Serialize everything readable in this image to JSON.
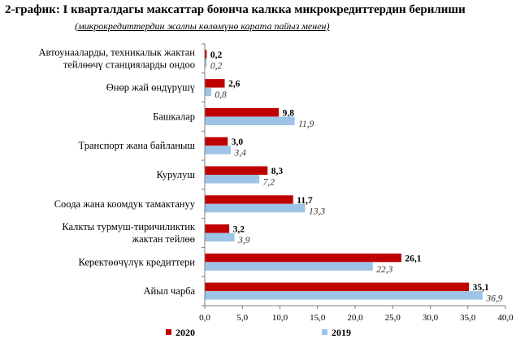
{
  "title": "2-график: I кварталдагы максаттар боюнча калкка микрокредиттердин берилиши",
  "subtitle": "(микрокредиттердин жалпы көлөмүнө карата пайыз менен)",
  "chart_data": {
    "type": "bar",
    "orientation": "horizontal",
    "categories": [
      [
        "Автоунааларды, техникалык жактан",
        "тейлөөчү станцияларды ондоо"
      ],
      [
        "Өнөр жай өндүрүшү"
      ],
      [
        "Башкалар"
      ],
      [
        "Транспорт жана байланыш"
      ],
      [
        "Курулуш"
      ],
      [
        "Соода жана коомдук тамактануу"
      ],
      [
        "Калкты турмуш-тиричиликтик",
        "жактан тейлөө"
      ],
      [
        "Керектөөчүлүк кредиттери"
      ],
      [
        "Айыл чарба"
      ]
    ],
    "series": [
      {
        "name": "2020",
        "color": "#c00000",
        "values": [
          0.2,
          2.6,
          9.8,
          3.0,
          8.3,
          11.7,
          3.2,
          26.1,
          35.1
        ],
        "labels": [
          "0,2",
          "2,6",
          "9,8",
          "3,0",
          "8,3",
          "11,7",
          "3,2",
          "26,1",
          "35,1"
        ]
      },
      {
        "name": "2019",
        "color": "#9dc3e6",
        "values": [
          0.2,
          0.8,
          11.9,
          3.4,
          7.2,
          13.3,
          3.9,
          22.3,
          36.9
        ],
        "labels": [
          "0,2",
          "0,8",
          "11,9",
          "3,4",
          "7,2",
          "13,3",
          "3,9",
          "22,3",
          "36,9"
        ]
      }
    ],
    "xlim": [
      0,
      40
    ],
    "xticks": [
      "0,0",
      "5,0",
      "10,0",
      "15,0",
      "20,0",
      "25,0",
      "30,0",
      "35,0",
      "40,0"
    ],
    "grid": false,
    "legend_position": "bottom"
  }
}
